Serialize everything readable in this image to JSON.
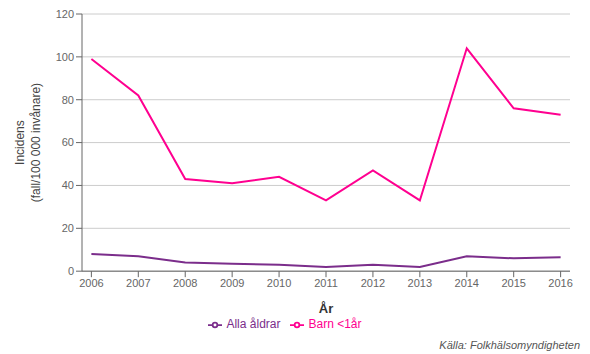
{
  "chart_data": {
    "type": "line",
    "x": [
      2006,
      2007,
      2008,
      2009,
      2010,
      2011,
      2012,
      2013,
      2014,
      2015,
      2016
    ],
    "series": [
      {
        "name": "Alla åldrar",
        "color": "#7B2D8B",
        "values": [
          8,
          7,
          4,
          3.5,
          3,
          2,
          3,
          2,
          7,
          6,
          6.5
        ]
      },
      {
        "name": "Barn <1år",
        "color": "#FF0090",
        "values": [
          99,
          82,
          43,
          41,
          44,
          33,
          47,
          33,
          104,
          76,
          73
        ]
      }
    ],
    "xlabel": "År",
    "ylabel": "Incidens\n(fall/100 000 invånare)",
    "xlim": [
      2005.8,
      2016.2
    ],
    "xticks": [
      2006,
      2007,
      2008,
      2009,
      2010,
      2011,
      2012,
      2013,
      2014,
      2015,
      2016
    ],
    "ylim": [
      0,
      120
    ],
    "yticks": [
      0,
      20,
      40,
      60,
      80,
      100,
      120
    ],
    "grid": true,
    "legend": "bottom",
    "annotation": "Källa: Folkhälsomyndigheten"
  }
}
